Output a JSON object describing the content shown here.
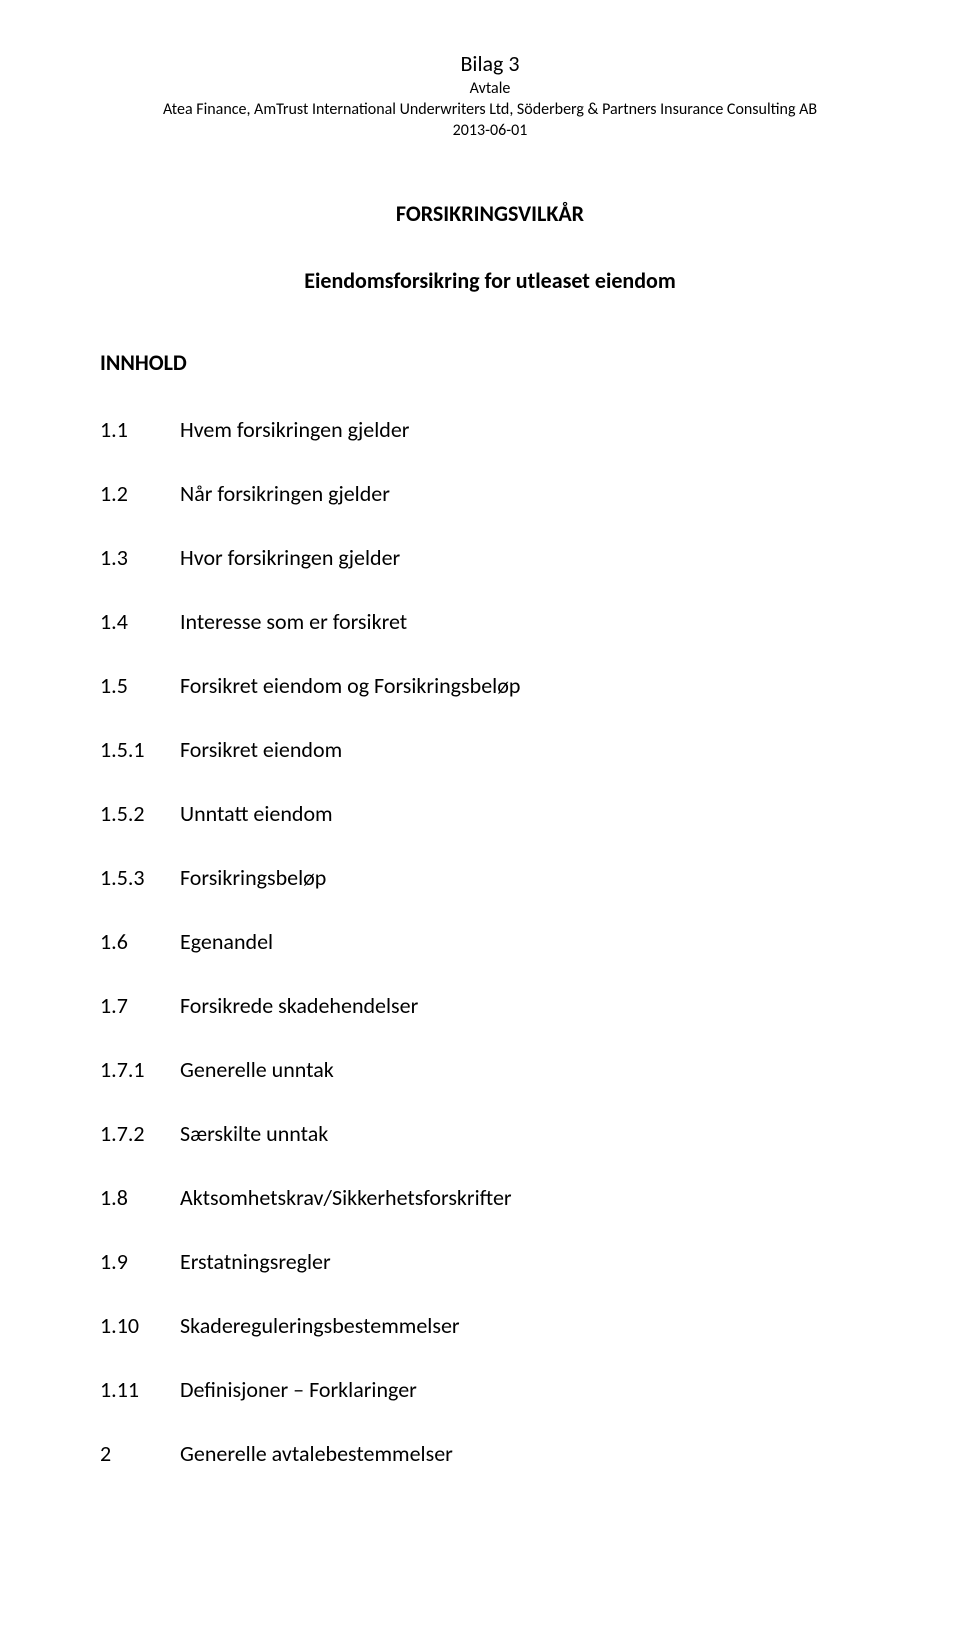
{
  "header": {
    "title": "Bilag 3",
    "subtitle": "Avtale",
    "parties": "Atea Finance, AmTrust International Underwriters Ltd, Söderberg & Partners Insurance Consulting AB",
    "date": "2013-06-01"
  },
  "main_title": "FORSIKRINGSVILKÅR",
  "sub_title": "Eiendomsforsikring for utleaset eiendom",
  "section_label": "INNHOLD",
  "toc": [
    {
      "num": "1.1",
      "text": "Hvem forsikringen gjelder"
    },
    {
      "num": "1.2",
      "text": "Når forsikringen gjelder"
    },
    {
      "num": "1.3",
      "text": "Hvor forsikringen gjelder"
    },
    {
      "num": "1.4",
      "text": "Interesse som er forsikret"
    },
    {
      "num": "1.5",
      "text": "Forsikret eiendom og Forsikringsbeløp"
    },
    {
      "num": "1.5.1",
      "text": "Forsikret eiendom"
    },
    {
      "num": "1.5.2",
      "text": "Unntatt eiendom"
    },
    {
      "num": "1.5.3",
      "text": "Forsikringsbeløp"
    },
    {
      "num": "1.6",
      "text": "Egenandel"
    },
    {
      "num": "1.7",
      "text": "Forsikrede skadehendelser"
    },
    {
      "num": "1.7.1",
      "text": "Generelle unntak"
    },
    {
      "num": "1.7.2",
      "text": "Særskilte unntak"
    },
    {
      "num": "1.8",
      "text": "Aktsomhetskrav/Sikkerhetsforskrifter"
    },
    {
      "num": "1.9",
      "text": "Erstatningsregler"
    },
    {
      "num": "1.10",
      "text": "Skadereguleringsbestemmelser"
    },
    {
      "num": "1.11",
      "text": "Definisjoner – Forklaringer"
    },
    {
      "num": "2",
      "text": "Generelle avtalebestemmelser"
    }
  ],
  "colors": {
    "background": "#ffffff",
    "text": "#000000"
  },
  "typography": {
    "header_title_fontsize": 22,
    "header_other_fontsize": 16,
    "main_title_fontsize": 22,
    "toc_fontsize": 22
  }
}
